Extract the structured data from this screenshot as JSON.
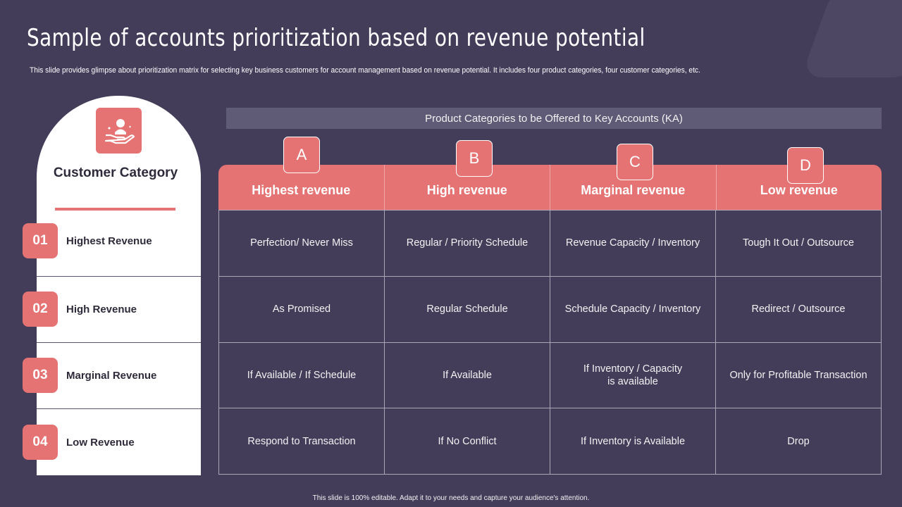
{
  "title": "Sample of accounts prioritization based on revenue potential",
  "subtitle": "This slide provides glimpse about prioritization matrix for selecting key business customers for account management based on revenue potential. It includes four product categories, four customer categories, etc.",
  "customer_panel": {
    "icon": "hand-holding-person-icon",
    "title": "Customer Category",
    "rows": [
      {
        "num": "01",
        "label": "Highest Revenue"
      },
      {
        "num": "02",
        "label": "High Revenue"
      },
      {
        "num": "03",
        "label": "Marginal Revenue"
      },
      {
        "num": "04",
        "label": "Low Revenue"
      }
    ]
  },
  "product_header": "Product Categories to be Offered to Key Accounts (KA)",
  "columns": [
    {
      "letter": "A",
      "label": "Highest revenue"
    },
    {
      "letter": "B",
      "label": "High revenue"
    },
    {
      "letter": "C",
      "label": "Marginal revenue"
    },
    {
      "letter": "D",
      "label": "Low revenue"
    }
  ],
  "cells": [
    [
      "Perfection/ Never Miss",
      "Regular / Priority Schedule",
      "Revenue Capacity / Inventory",
      "Tough It Out / Outsource"
    ],
    [
      "As Promised",
      "Regular Schedule",
      "Schedule Capacity / Inventory",
      "Redirect / Outsource"
    ],
    [
      "If Available  / If Schedule",
      "If Available",
      "If Inventory  / Capacity\nis available",
      "Only for Profitable Transaction"
    ],
    [
      "Respond to Transaction",
      "If No Conflict",
      "If Inventory  is Available",
      "Drop"
    ]
  ],
  "footer": "This slide is 100% editable.  Adapt it to your needs and capture your audience's attention.",
  "colors": {
    "background": "#433d5a",
    "accent": "#e57373",
    "header_bar": "#5f5a75"
  }
}
